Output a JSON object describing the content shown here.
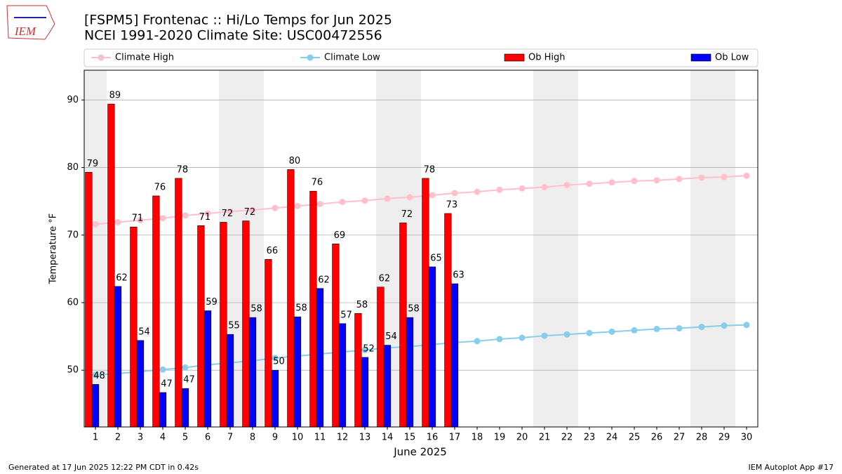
{
  "logo_text": "IEM",
  "footer_left": "Generated at 17 Jun 2025 12:22 PM CDT in 0.42s",
  "footer_right": "IEM Autoplot App #17",
  "chart_data": {
    "type": "bar",
    "title": "[FSPM5] Frontenac :: Hi/Lo Temps for Jun 2025",
    "subtitle": "NCEI 1991-2020 Climate Site: USC00472556",
    "x_label": "June 2025",
    "y_label": "Temperature °F",
    "legend": "above",
    "grid": true,
    "categories": [
      "1",
      "2",
      "3",
      "4",
      "5",
      "6",
      "7",
      "8",
      "9",
      "10",
      "11",
      "12",
      "13",
      "14",
      "15",
      "16",
      "17",
      "18",
      "19",
      "20",
      "21",
      "22",
      "23",
      "24",
      "25",
      "26",
      "27",
      "28",
      "29",
      "30"
    ],
    "ylim": [
      41.6,
      94.4
    ],
    "yticks": [
      50,
      60,
      70,
      80,
      90
    ],
    "series": [
      {
        "name": "Climate High",
        "type": "line",
        "color": "#ffc0cb",
        "values": [
          71.6,
          71.9,
          72.2,
          72.5,
          72.9,
          73.2,
          73.5,
          73.7,
          74.0,
          74.3,
          74.6,
          74.9,
          75.1,
          75.4,
          75.6,
          75.9,
          76.2,
          76.4,
          76.7,
          76.9,
          77.1,
          77.4,
          77.6,
          77.8,
          78.0,
          78.1,
          78.3,
          78.5,
          78.6,
          78.8
        ]
      },
      {
        "name": "Climate Low",
        "type": "line",
        "color": "#87ceeb",
        "values": [
          49.3,
          49.5,
          49.8,
          50.1,
          50.4,
          50.8,
          51.1,
          51.4,
          51.8,
          52.1,
          52.4,
          52.7,
          53.0,
          53.3,
          53.5,
          53.8,
          54.1,
          54.3,
          54.6,
          54.8,
          55.1,
          55.3,
          55.5,
          55.7,
          55.9,
          56.1,
          56.2,
          56.4,
          56.6,
          56.7
        ]
      },
      {
        "name": "Ob High",
        "type": "bar",
        "color": "#ff0000",
        "values": [
          79.3,
          89.4,
          71.2,
          75.8,
          78.4,
          71.4,
          71.9,
          72.1,
          66.4,
          79.7,
          76.5,
          68.7,
          58.4,
          62.3,
          71.8,
          78.4,
          73.2,
          null,
          null,
          null,
          null,
          null,
          null,
          null,
          null,
          null,
          null,
          null,
          null,
          null
        ],
        "value_labels": [
          "79",
          "89",
          "71",
          "76",
          "78",
          "71",
          "72",
          "72",
          "66",
          "80",
          "76",
          "69",
          "58",
          "62",
          "72",
          "78",
          "73",
          null,
          null,
          null,
          null,
          null,
          null,
          null,
          null,
          null,
          null,
          null,
          null,
          null
        ]
      },
      {
        "name": "Ob Low",
        "type": "bar",
        "color": "#0000ff",
        "values": [
          47.9,
          62.4,
          54.4,
          46.7,
          47.3,
          58.8,
          55.3,
          57.8,
          50.0,
          57.9,
          62.1,
          56.9,
          51.9,
          53.7,
          57.8,
          65.3,
          62.8,
          null,
          null,
          null,
          null,
          null,
          null,
          null,
          null,
          null,
          null,
          null,
          null,
          null
        ],
        "value_labels": [
          "48",
          "62",
          "54",
          "47",
          "47",
          "59",
          "55",
          "58",
          "50",
          "58",
          "62",
          "57",
          "52",
          "54",
          "58",
          "65",
          "63",
          null,
          null,
          null,
          null,
          null,
          null,
          null,
          null,
          null,
          null,
          null,
          null,
          null
        ]
      }
    ]
  }
}
